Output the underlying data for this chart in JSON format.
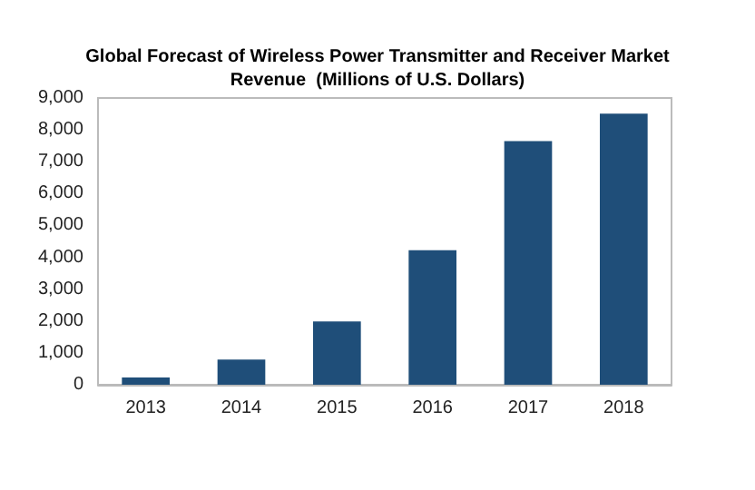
{
  "chart_data": {
    "type": "bar",
    "title": "Global Forecast of Wireless Power Transmitter and Receiver Market\nRevenue  (Millions of U.S. Dollars)",
    "categories": [
      "2013",
      "2014",
      "2015",
      "2016",
      "2017",
      "2018"
    ],
    "values": [
      230,
      790,
      1990,
      4220,
      7650,
      8510
    ],
    "color": "#1f4e79",
    "ylim": [
      0,
      9000
    ],
    "yticks": [
      0,
      {
        "value": 1000,
        "label": "1,000"
      },
      {
        "value": 2000,
        "label": "2,000"
      },
      {
        "value": 3000,
        "label": "3,000"
      },
      {
        "value": 4000,
        "label": "4,000"
      },
      {
        "value": 5000,
        "label": "5,000"
      },
      {
        "value": 6000,
        "label": "6,000"
      },
      {
        "value": 7000,
        "label": "7,000"
      },
      {
        "value": 8000,
        "label": "8,000"
      },
      {
        "value": 9000,
        "label": "9,000"
      }
    ],
    "grid": false
  }
}
